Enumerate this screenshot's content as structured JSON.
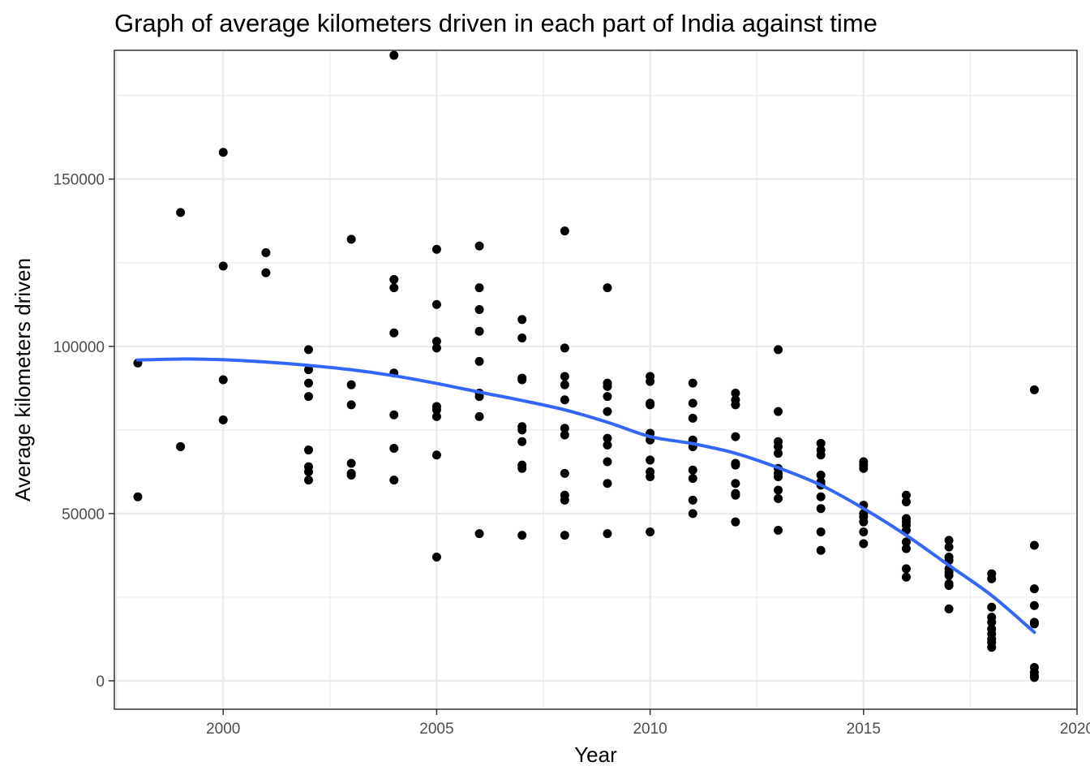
{
  "chart_data": {
    "type": "scatter",
    "title": "Graph of average kilometers driven in each part of India against time",
    "xlabel": "Year",
    "ylabel": "Average kilometers driven",
    "xlim": [
      1997.45,
      2020.0
    ],
    "ylim": [
      -8500,
      188500
    ],
    "x_ticks": [
      2000,
      2005,
      2010,
      2015,
      2020
    ],
    "x_tick_labels": [
      "2000",
      "2005",
      "2010",
      "2015",
      "2020"
    ],
    "y_ticks": [
      0,
      50000,
      100000,
      150000
    ],
    "y_tick_labels": [
      "0",
      "50000",
      "100000",
      "150000"
    ],
    "grid": true,
    "legend": "none",
    "colors": {
      "points": "#000000",
      "smooth_line": "#3366FF",
      "grid": "#EBEBEB",
      "panel_border": "#333333"
    },
    "series": [
      {
        "type": "scatter",
        "points": [
          [
            1998,
            95000
          ],
          [
            1998,
            55000
          ],
          [
            1999,
            140000
          ],
          [
            1999,
            70000
          ],
          [
            2000,
            158000
          ],
          [
            2000,
            124000
          ],
          [
            2000,
            90000
          ],
          [
            2000,
            78000
          ],
          [
            2001,
            128000
          ],
          [
            2001,
            122000
          ],
          [
            2002,
            99000
          ],
          [
            2002,
            93000
          ],
          [
            2002,
            89000
          ],
          [
            2002,
            85000
          ],
          [
            2002,
            69000
          ],
          [
            2002,
            64000
          ],
          [
            2002,
            62500
          ],
          [
            2002,
            60000
          ],
          [
            2003,
            132000
          ],
          [
            2003,
            88500
          ],
          [
            2003,
            82500
          ],
          [
            2003,
            65000
          ],
          [
            2003,
            62000
          ],
          [
            2003,
            61500
          ],
          [
            2004,
            187000
          ],
          [
            2004,
            120000
          ],
          [
            2004,
            117500
          ],
          [
            2004,
            104000
          ],
          [
            2004,
            92000
          ],
          [
            2004,
            79500
          ],
          [
            2004,
            69500
          ],
          [
            2004,
            60000
          ],
          [
            2005,
            129000
          ],
          [
            2005,
            112500
          ],
          [
            2005,
            101500
          ],
          [
            2005,
            99500
          ],
          [
            2005,
            82000
          ],
          [
            2005,
            81000
          ],
          [
            2005,
            79000
          ],
          [
            2005,
            67500
          ],
          [
            2005,
            37000
          ],
          [
            2006,
            130000
          ],
          [
            2006,
            117500
          ],
          [
            2006,
            111000
          ],
          [
            2006,
            104500
          ],
          [
            2006,
            95500
          ],
          [
            2006,
            86000
          ],
          [
            2006,
            85000
          ],
          [
            2006,
            79000
          ],
          [
            2006,
            44000
          ],
          [
            2007,
            108000
          ],
          [
            2007,
            102500
          ],
          [
            2007,
            90500
          ],
          [
            2007,
            90000
          ],
          [
            2007,
            76000
          ],
          [
            2007,
            75000
          ],
          [
            2007,
            71500
          ],
          [
            2007,
            64500
          ],
          [
            2007,
            63500
          ],
          [
            2007,
            43500
          ],
          [
            2008,
            134500
          ],
          [
            2008,
            99500
          ],
          [
            2008,
            91000
          ],
          [
            2008,
            88500
          ],
          [
            2008,
            84000
          ],
          [
            2008,
            75500
          ],
          [
            2008,
            73500
          ],
          [
            2008,
            62000
          ],
          [
            2008,
            55500
          ],
          [
            2008,
            54000
          ],
          [
            2008,
            43500
          ],
          [
            2009,
            117500
          ],
          [
            2009,
            89000
          ],
          [
            2009,
            88000
          ],
          [
            2009,
            85000
          ],
          [
            2009,
            80500
          ],
          [
            2009,
            72500
          ],
          [
            2009,
            70500
          ],
          [
            2009,
            65500
          ],
          [
            2009,
            59000
          ],
          [
            2009,
            44000
          ],
          [
            2010,
            91000
          ],
          [
            2010,
            89500
          ],
          [
            2010,
            83000
          ],
          [
            2010,
            82500
          ],
          [
            2010,
            74000
          ],
          [
            2010,
            72000
          ],
          [
            2010,
            66000
          ],
          [
            2010,
            62500
          ],
          [
            2010,
            61000
          ],
          [
            2010,
            44500
          ],
          [
            2011,
            89000
          ],
          [
            2011,
            83000
          ],
          [
            2011,
            78500
          ],
          [
            2011,
            72000
          ],
          [
            2011,
            70000
          ],
          [
            2011,
            63000
          ],
          [
            2011,
            60500
          ],
          [
            2011,
            54000
          ],
          [
            2011,
            50000
          ],
          [
            2012,
            86000
          ],
          [
            2012,
            84000
          ],
          [
            2012,
            82500
          ],
          [
            2012,
            73000
          ],
          [
            2012,
            65000
          ],
          [
            2012,
            64500
          ],
          [
            2012,
            59000
          ],
          [
            2012,
            56000
          ],
          [
            2012,
            55500
          ],
          [
            2012,
            47500
          ],
          [
            2013,
            99000
          ],
          [
            2013,
            80500
          ],
          [
            2013,
            71500
          ],
          [
            2013,
            70000
          ],
          [
            2013,
            68000
          ],
          [
            2013,
            63500
          ],
          [
            2013,
            62000
          ],
          [
            2013,
            61000
          ],
          [
            2013,
            57000
          ],
          [
            2013,
            54500
          ],
          [
            2013,
            45000
          ],
          [
            2014,
            71000
          ],
          [
            2014,
            69000
          ],
          [
            2014,
            67500
          ],
          [
            2014,
            61500
          ],
          [
            2014,
            59500
          ],
          [
            2014,
            58500
          ],
          [
            2014,
            55000
          ],
          [
            2014,
            51500
          ],
          [
            2014,
            44500
          ],
          [
            2014,
            39000
          ],
          [
            2015,
            65500
          ],
          [
            2015,
            64500
          ],
          [
            2015,
            63500
          ],
          [
            2015,
            52500
          ],
          [
            2015,
            50000
          ],
          [
            2015,
            49000
          ],
          [
            2015,
            47500
          ],
          [
            2015,
            44500
          ],
          [
            2015,
            41000
          ],
          [
            2016,
            55500
          ],
          [
            2016,
            53500
          ],
          [
            2016,
            48500
          ],
          [
            2016,
            47500
          ],
          [
            2016,
            46500
          ],
          [
            2016,
            45000
          ],
          [
            2016,
            41500
          ],
          [
            2016,
            39500
          ],
          [
            2016,
            33500
          ],
          [
            2016,
            31000
          ],
          [
            2017,
            42000
          ],
          [
            2017,
            40000
          ],
          [
            2017,
            37000
          ],
          [
            2017,
            36000
          ],
          [
            2017,
            33500
          ],
          [
            2017,
            32500
          ],
          [
            2017,
            31500
          ],
          [
            2017,
            29000
          ],
          [
            2017,
            28500
          ],
          [
            2017,
            21500
          ],
          [
            2018,
            32000
          ],
          [
            2018,
            30500
          ],
          [
            2018,
            22000
          ],
          [
            2018,
            19000
          ],
          [
            2018,
            17500
          ],
          [
            2018,
            15500
          ],
          [
            2018,
            14000
          ],
          [
            2018,
            12500
          ],
          [
            2018,
            11500
          ],
          [
            2018,
            10000
          ],
          [
            2019,
            87000
          ],
          [
            2019,
            40500
          ],
          [
            2019,
            27500
          ],
          [
            2019,
            22500
          ],
          [
            2019,
            17500
          ],
          [
            2019,
            17000
          ],
          [
            2019,
            4000
          ],
          [
            2019,
            2500
          ],
          [
            2019,
            1500
          ],
          [
            2019,
            1000
          ]
        ]
      },
      {
        "type": "line",
        "points": [
          [
            1998,
            95900
          ],
          [
            1999,
            96200
          ],
          [
            2000,
            96000
          ],
          [
            2001,
            95300
          ],
          [
            2002,
            94300
          ],
          [
            2003,
            93000
          ],
          [
            2004,
            91200
          ],
          [
            2005,
            88900
          ],
          [
            2006,
            86300
          ],
          [
            2007,
            83800
          ],
          [
            2008,
            81000
          ],
          [
            2009,
            77300
          ],
          [
            2010,
            73000
          ],
          [
            2011,
            70900
          ],
          [
            2012,
            68000
          ],
          [
            2013,
            63700
          ],
          [
            2014,
            58500
          ],
          [
            2015,
            51500
          ],
          [
            2016,
            43500
          ],
          [
            2017,
            34500
          ],
          [
            2018,
            25500
          ],
          [
            2019,
            14500
          ]
        ]
      }
    ]
  }
}
